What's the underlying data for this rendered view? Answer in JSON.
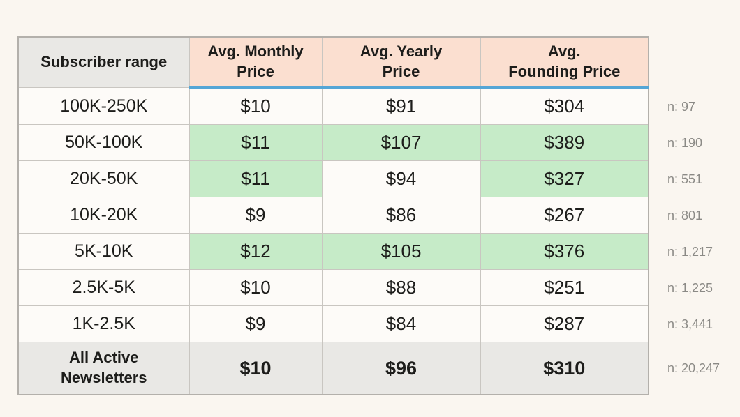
{
  "colors": {
    "page_bg": "#faf6f0",
    "cell_bg": "#fdfbf8",
    "header_pink": "#fbdfd0",
    "header_gray": "#e9e8e5",
    "footer_gray": "#e9e8e5",
    "highlight_green": "#c6ebc8",
    "accent_blue": "#55a6d6",
    "n_label_gray": "#8b8a86",
    "border_gray": "#c9c6c1"
  },
  "table": {
    "headers": [
      {
        "line1": "Subscriber range",
        "line2": ""
      },
      {
        "line1": "Avg. Monthly",
        "line2": "Price"
      },
      {
        "line1": "Avg. Yearly",
        "line2": "Price"
      },
      {
        "line1": "Avg.",
        "line2": "Founding Price"
      }
    ],
    "rows": [
      {
        "range": "100K-250K",
        "monthly": "$10",
        "yearly": "$91",
        "founding": "$304",
        "n": "n: 97"
      },
      {
        "range": "50K-100K",
        "monthly": "$11",
        "yearly": "$107",
        "founding": "$389",
        "n": "n: 190"
      },
      {
        "range": "20K-50K",
        "monthly": "$11",
        "yearly": "$94",
        "founding": "$327",
        "n": "n: 551"
      },
      {
        "range": "10K-20K",
        "monthly": "$9",
        "yearly": "$86",
        "founding": "$267",
        "n": "n: 801"
      },
      {
        "range": "5K-10K",
        "monthly": "$12",
        "yearly": "$105",
        "founding": "$376",
        "n": "n: 1,217"
      },
      {
        "range": "2.5K-5K",
        "monthly": "$10",
        "yearly": "$88",
        "founding": "$251",
        "n": "n: 1,225"
      },
      {
        "range": "1K-2.5K",
        "monthly": "$9",
        "yearly": "$84",
        "founding": "$287",
        "n": "n: 3,441"
      }
    ],
    "footer": {
      "range": "All Active Newsletters",
      "monthly": "$10",
      "yearly": "$96",
      "founding": "$310",
      "n": "n: 20,247"
    }
  },
  "chart_data": {
    "type": "table",
    "columns": [
      "Subscriber range",
      "Avg. Monthly Price",
      "Avg. Yearly Price",
      "Avg. Founding Price",
      "n"
    ],
    "rows": [
      [
        "100K-250K",
        10,
        91,
        304,
        97
      ],
      [
        "50K-100K",
        11,
        107,
        389,
        190
      ],
      [
        "20K-50K",
        11,
        94,
        327,
        551
      ],
      [
        "10K-20K",
        9,
        86,
        267,
        801
      ],
      [
        "5K-10K",
        12,
        105,
        376,
        1217
      ],
      [
        "2.5K-5K",
        10,
        88,
        251,
        1225
      ],
      [
        "1K-2.5K",
        9,
        84,
        287,
        3441
      ],
      [
        "All Active Newsletters",
        10,
        96,
        310,
        20247
      ]
    ],
    "green_highlighted_cells": [
      {
        "row": "50K-100K",
        "columns": [
          "Avg. Monthly Price",
          "Avg. Yearly Price",
          "Avg. Founding Price"
        ]
      },
      {
        "row": "20K-50K",
        "columns": [
          "Avg. Monthly Price",
          "Avg. Founding Price"
        ]
      },
      {
        "row": "5K-10K",
        "columns": [
          "Avg. Monthly Price",
          "Avg. Yearly Price",
          "Avg. Founding Price"
        ]
      }
    ]
  }
}
